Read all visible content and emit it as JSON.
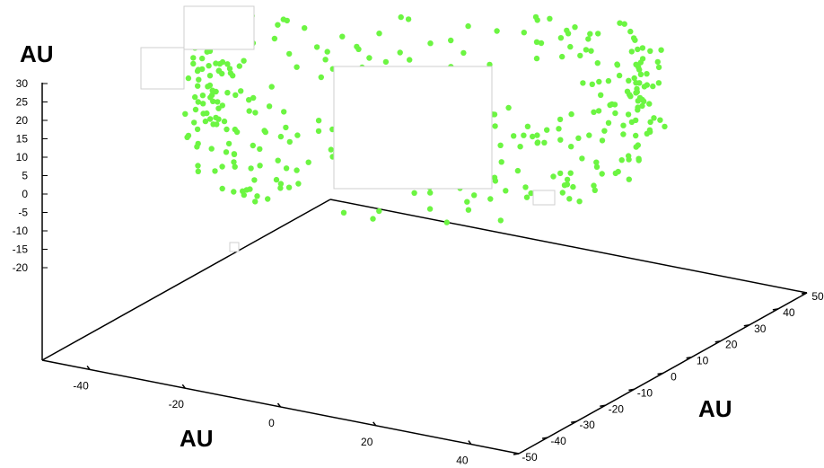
{
  "chart_data": {
    "type": "scatter",
    "title": "",
    "axis_labels": {
      "z": "AU",
      "x": "AU",
      "y": "AU"
    },
    "z_ticks": [
      "30",
      "25",
      "20",
      "15",
      "10",
      "5",
      "0",
      "-5",
      "-10",
      "-15",
      "-20"
    ],
    "x_ticks": [
      "-40",
      "-20",
      "0",
      "20",
      "40"
    ],
    "y_ticks": [
      "-50",
      "-40",
      "-30",
      "-20",
      "-10",
      "0",
      "10",
      "20",
      "30",
      "40",
      "50"
    ],
    "xlim": [
      -50,
      50
    ],
    "ylim": [
      -50,
      50
    ],
    "zlim": [
      -25,
      30
    ],
    "point_color": "#6cf542",
    "axis_color": "#000000",
    "ring": {
      "radius_au": 45,
      "point_count": 400,
      "z_spread": 8,
      "radial_spread": 3
    }
  }
}
